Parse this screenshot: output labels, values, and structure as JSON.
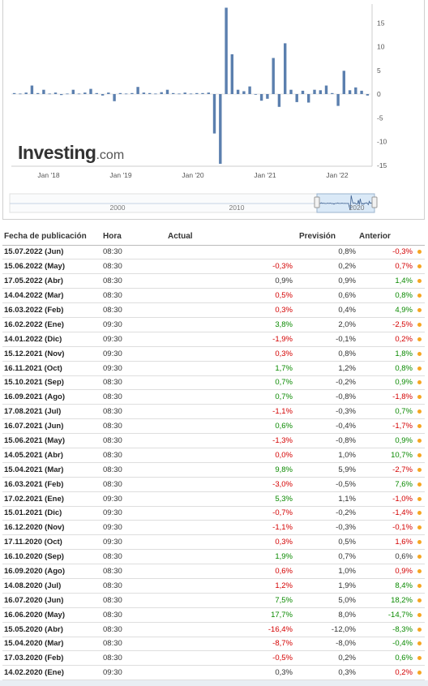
{
  "brand": {
    "name": "Investing",
    "suffix": ".com"
  },
  "colors": {
    "bar": "#5b7fae",
    "negative": "#d40000",
    "positive": "#0a8a00",
    "dot": "#f5a623",
    "navigator": "#cfe3f5"
  },
  "chart_data": {
    "type": "bar",
    "x_tick_labels": [
      "Jan '18",
      "Jan '19",
      "Jan '20",
      "Jan '21",
      "Jan '22"
    ],
    "y_ticks": [
      15,
      10,
      5,
      0,
      -5,
      -10,
      -15
    ],
    "ylim": [
      -15,
      18
    ],
    "series": [
      {
        "values": [
          0.2,
          0.1,
          0.3,
          1.8,
          0.2,
          0.9,
          0.1,
          0.3,
          -0.2,
          0.1,
          0.9,
          0.1,
          0.3,
          1.1,
          0.2,
          -0.3,
          0.3,
          -1.5,
          0.2,
          0.1,
          0.2,
          1.5,
          0.3,
          0.2,
          0.1,
          0.4,
          0.9,
          0.2,
          0.1,
          0.3,
          0.1,
          0.2,
          0.2,
          0.3,
          -8.3,
          -14.7,
          18.2,
          8.4,
          0.9,
          0.6,
          1.6,
          -0.1,
          -1.4,
          -1.0,
          7.6,
          -2.7,
          10.7,
          0.9,
          -1.7,
          0.7,
          -1.8,
          0.9,
          0.8,
          1.8,
          0.2,
          -2.5,
          4.9,
          0.8,
          1.4,
          0.7,
          -0.3
        ]
      }
    ],
    "navigator": {
      "labels": [
        "2000",
        "2010",
        "2020"
      ]
    }
  },
  "table": {
    "headers": [
      "Fecha de publicación",
      "Hora",
      "Actual",
      "Previsión",
      "Anterior"
    ],
    "rows": [
      {
        "date": "15.07.2022 (Jun)",
        "time": "08:30",
        "actual": "",
        "forecast": "0,8%",
        "previous": "-0,3%"
      },
      {
        "date": "15.06.2022 (May)",
        "time": "08:30",
        "actual": "-0,3%",
        "forecast": "0,2%",
        "previous": "0,7%"
      },
      {
        "date": "17.05.2022 (Abr)",
        "time": "08:30",
        "actual": "0,9%",
        "forecast": "0,9%",
        "previous": "1,4%"
      },
      {
        "date": "14.04.2022 (Mar)",
        "time": "08:30",
        "actual": "0,5%",
        "forecast": "0,6%",
        "previous": "0,8%"
      },
      {
        "date": "16.03.2022 (Feb)",
        "time": "08:30",
        "actual": "0,3%",
        "forecast": "0,4%",
        "previous": "4,9%"
      },
      {
        "date": "16.02.2022 (Ene)",
        "time": "09:30",
        "actual": "3,8%",
        "forecast": "2,0%",
        "previous": "-2,5%"
      },
      {
        "date": "14.01.2022 (Dic)",
        "time": "09:30",
        "actual": "-1,9%",
        "forecast": "-0,1%",
        "previous": "0,2%"
      },
      {
        "date": "15.12.2021 (Nov)",
        "time": "09:30",
        "actual": "0,3%",
        "forecast": "0,8%",
        "previous": "1,8%"
      },
      {
        "date": "16.11.2021 (Oct)",
        "time": "09:30",
        "actual": "1,7%",
        "forecast": "1,2%",
        "previous": "0,8%"
      },
      {
        "date": "15.10.2021 (Sep)",
        "time": "08:30",
        "actual": "0,7%",
        "forecast": "-0,2%",
        "previous": "0,9%"
      },
      {
        "date": "16.09.2021 (Ago)",
        "time": "08:30",
        "actual": "0,7%",
        "forecast": "-0,8%",
        "previous": "-1,8%"
      },
      {
        "date": "17.08.2021 (Jul)",
        "time": "08:30",
        "actual": "-1,1%",
        "forecast": "-0,3%",
        "previous": "0,7%"
      },
      {
        "date": "16.07.2021 (Jun)",
        "time": "08:30",
        "actual": "0,6%",
        "forecast": "-0,4%",
        "previous": "-1,7%"
      },
      {
        "date": "15.06.2021 (May)",
        "time": "08:30",
        "actual": "-1,3%",
        "forecast": "-0,8%",
        "previous": "0,9%"
      },
      {
        "date": "14.05.2021 (Abr)",
        "time": "08:30",
        "actual": "0,0%",
        "forecast": "1,0%",
        "previous": "10,7%"
      },
      {
        "date": "15.04.2021 (Mar)",
        "time": "08:30",
        "actual": "9,8%",
        "forecast": "5,9%",
        "previous": "-2,7%"
      },
      {
        "date": "16.03.2021 (Feb)",
        "time": "08:30",
        "actual": "-3,0%",
        "forecast": "-0,5%",
        "previous": "7,6%"
      },
      {
        "date": "17.02.2021 (Ene)",
        "time": "09:30",
        "actual": "5,3%",
        "forecast": "1,1%",
        "previous": "-1,0%"
      },
      {
        "date": "15.01.2021 (Dic)",
        "time": "09:30",
        "actual": "-0,7%",
        "forecast": "-0,2%",
        "previous": "-1,4%"
      },
      {
        "date": "16.12.2020 (Nov)",
        "time": "09:30",
        "actual": "-1,1%",
        "forecast": "-0,3%",
        "previous": "-0,1%"
      },
      {
        "date": "17.11.2020 (Oct)",
        "time": "09:30",
        "actual": "0,3%",
        "forecast": "0,5%",
        "previous": "1,6%"
      },
      {
        "date": "16.10.2020 (Sep)",
        "time": "08:30",
        "actual": "1,9%",
        "forecast": "0,7%",
        "previous": "0,6%"
      },
      {
        "date": "16.09.2020 (Ago)",
        "time": "08:30",
        "actual": "0,6%",
        "forecast": "1,0%",
        "previous": "0,9%"
      },
      {
        "date": "14.08.2020 (Jul)",
        "time": "08:30",
        "actual": "1,2%",
        "forecast": "1,9%",
        "previous": "8,4%"
      },
      {
        "date": "16.07.2020 (Jun)",
        "time": "08:30",
        "actual": "7,5%",
        "forecast": "5,0%",
        "previous": "18,2%"
      },
      {
        "date": "16.06.2020 (May)",
        "time": "08:30",
        "actual": "17,7%",
        "forecast": "8,0%",
        "previous": "-14,7%"
      },
      {
        "date": "15.05.2020 (Abr)",
        "time": "08:30",
        "actual": "-16,4%",
        "forecast": "-12,0%",
        "previous": "-8,3%"
      },
      {
        "date": "15.04.2020 (Mar)",
        "time": "08:30",
        "actual": "-8,7%",
        "forecast": "-8,0%",
        "previous": "-0,4%"
      },
      {
        "date": "17.03.2020 (Feb)",
        "time": "08:30",
        "actual": "-0,5%",
        "forecast": "0,2%",
        "previous": "0,6%"
      },
      {
        "date": "14.02.2020 (Ene)",
        "time": "09:30",
        "actual": "0,3%",
        "forecast": "0,3%",
        "previous": "0,2%"
      }
    ],
    "actual_status": [
      "none",
      "neg",
      "none",
      "neg",
      "neg",
      "pos",
      "neg",
      "neg",
      "pos",
      "pos",
      "pos",
      "neg",
      "pos",
      "neg",
      "neg",
      "pos",
      "neg",
      "pos",
      "neg",
      "neg",
      "neg",
      "pos",
      "neg",
      "neg",
      "pos",
      "pos",
      "neg",
      "neg",
      "neg",
      "none"
    ],
    "previous_status": [
      "neg",
      "neg",
      "pos",
      "pos",
      "pos",
      "neg",
      "neg",
      "pos",
      "pos",
      "pos",
      "neg",
      "pos",
      "neg",
      "pos",
      "pos",
      "neg",
      "pos",
      "neg",
      "neg",
      "neg",
      "neg",
      "none",
      "neg",
      "pos",
      "pos",
      "pos",
      "pos",
      "pos",
      "pos",
      "neg"
    ]
  }
}
